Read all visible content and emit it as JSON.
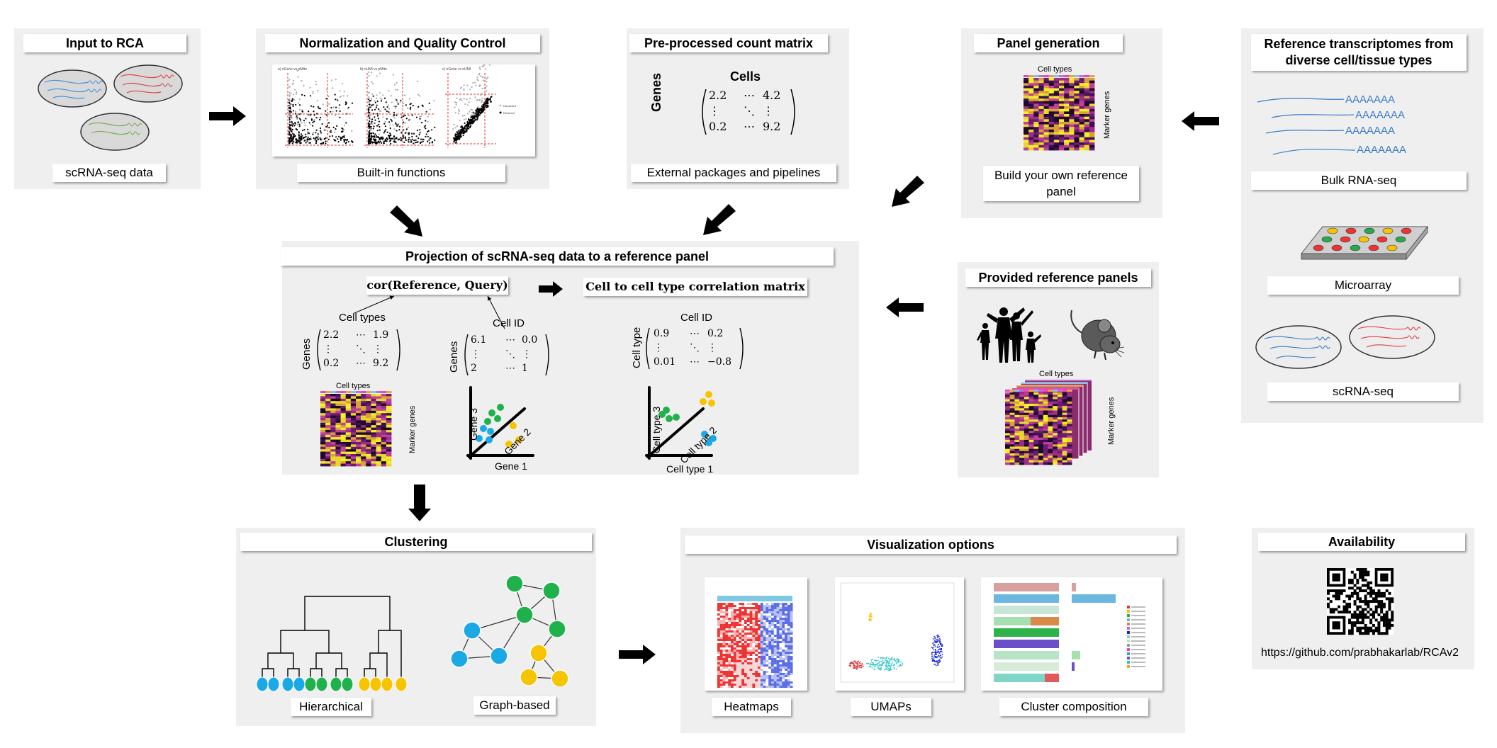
{
  "colors": {
    "panel": "#efefef",
    "heat_dark": "#2a0f3a",
    "heat_mid": "#c2409a",
    "heat_high": "#f4ee2b",
    "green": "#1fb14b",
    "blue": "#1ba9e6",
    "yellow": "#f6c400",
    "red": "#ef3b3b"
  },
  "input": {
    "title": "Input to RCA",
    "caption": "scRNA-seq data"
  },
  "norm": {
    "title": "Normalization and Quality Control",
    "caption": "Built-in functions",
    "plot_titles": [
      "a) nGene vs pMito",
      "b) nUMI vs pMito",
      "c) nGene vs nUMI"
    ],
    "legend": [
      "Discarded",
      "Retained"
    ]
  },
  "preproc": {
    "title": "Pre-processed count matrix",
    "caption": "External packages and pipelines",
    "cells_label": "Cells",
    "genes_label": "Genes",
    "matrix": [
      [
        "2.2",
        "⋯",
        "4.2"
      ],
      [
        "⋮",
        "⋱",
        "⋮"
      ],
      [
        "0.2",
        "⋯",
        "9.2"
      ]
    ]
  },
  "panelgen": {
    "title": "Panel generation",
    "caption": "Build your own reference panel",
    "heat_top": "Cell types",
    "heat_side": "Marker genes"
  },
  "reftx": {
    "title": "Reference transcriptomes from diverse cell/tissue types",
    "bulk_caption": "Bulk RNA-seq",
    "micro_caption": "Microarray",
    "sc_caption": "scRNA-seq",
    "poly_a": "AAAAAAA"
  },
  "projection": {
    "title": "Projection of scRNA-seq data to a reference panel",
    "formula": "cor(Reference, Query)",
    "result": "Cell to cell type correlation matrix",
    "m1": {
      "top": "Cell types",
      "side": "Genes",
      "rows": [
        [
          "2.2",
          "⋯",
          "1.9"
        ],
        [
          "⋮",
          "⋱",
          "⋮"
        ],
        [
          "0.2",
          "⋯",
          "9.2"
        ]
      ]
    },
    "m2": {
      "top": "Cell ID",
      "side": "Genes",
      "rows": [
        [
          "6.1",
          "⋯",
          "0.0"
        ],
        [
          "⋮",
          "⋱",
          "⋮"
        ],
        [
          "2",
          "⋯",
          "1"
        ]
      ]
    },
    "m3": {
      "top": "Cell ID",
      "side": "Cell type",
      "rows": [
        [
          "0.9",
          "⋯",
          "0.2"
        ],
        [
          "⋮",
          "⋱",
          "⋮"
        ],
        [
          "0.01",
          "⋯",
          "−0.8"
        ]
      ]
    },
    "heat_top": "Cell types",
    "heat_side": "Marker genes",
    "axes1": {
      "x": "Gene 1",
      "y": "Gene 3",
      "z": "Gene 2"
    },
    "axes2": {
      "x": "Cell type 1",
      "y": "Cell type 3",
      "z": "Cell type 2"
    }
  },
  "provided": {
    "title": "Provided reference panels",
    "heat_top": "Cell types",
    "heat_side": "Marker genes"
  },
  "clustering": {
    "title": "Clustering",
    "cap1": "Hierarchical",
    "cap2": "Graph-based"
  },
  "viz": {
    "title": "Visualization options",
    "cap1": "Heatmaps",
    "cap2": "UMAPs",
    "cap3": "Cluster composition"
  },
  "availability": {
    "title": "Availability",
    "url": "https://github.com/prabhakarlab/RCAv2"
  }
}
